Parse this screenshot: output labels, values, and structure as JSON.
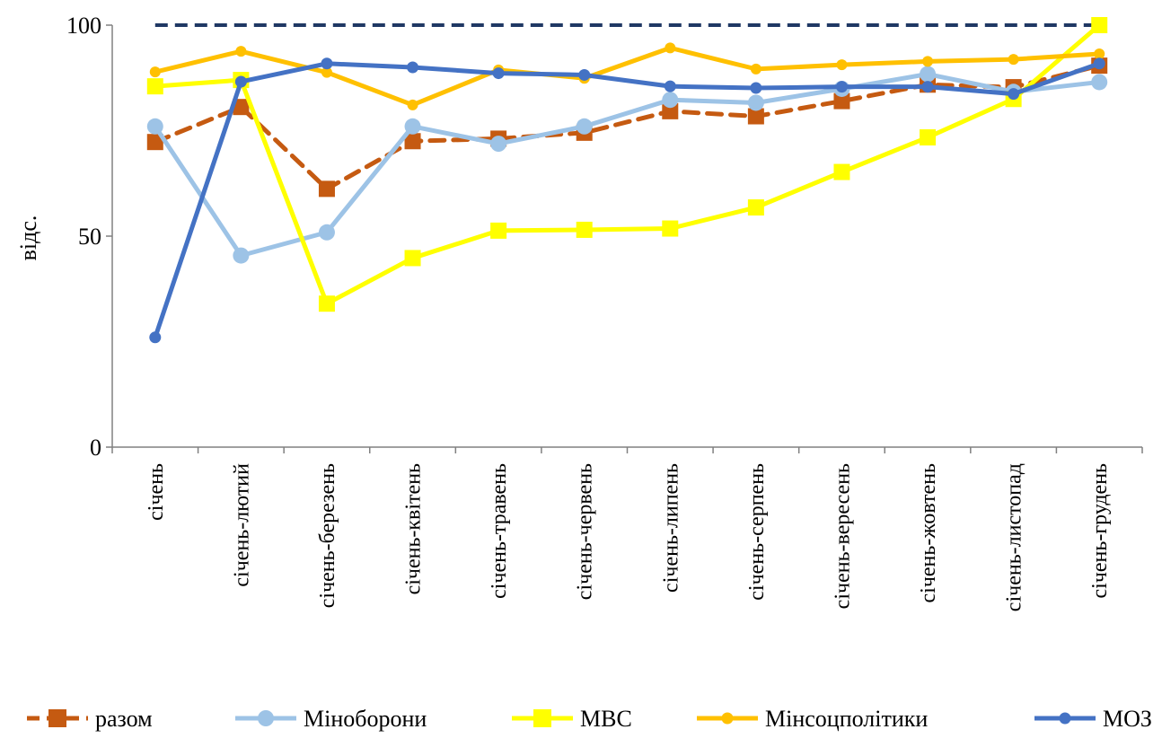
{
  "chart_data": {
    "type": "line",
    "ylabel": "відс.",
    "xlabel": "",
    "ylim": [
      0,
      100
    ],
    "yticks": [
      "0",
      "50",
      "100"
    ],
    "grid": false,
    "legend_position": "bottom",
    "categories": [
      "січень",
      "січень-лютий",
      "січень-березень",
      "січень-квітень",
      "січень-травень",
      "січень-червень",
      "січень-липень",
      "січень-серпень",
      "січень-вересень",
      "січень-жовтень",
      "січень-листопад",
      "січень-грудень"
    ],
    "reference_line": {
      "value": 100,
      "color": "#1f3864",
      "style": "dashed"
    },
    "series": [
      {
        "name": "разом",
        "color": "#c55a11",
        "marker": "square",
        "dash": true,
        "values": [
          72.3,
          80.6,
          61.2,
          72.5,
          73.1,
          74.5,
          79.6,
          78.4,
          82.0,
          85.9,
          85.3,
          90.4
        ]
      },
      {
        "name": "Міноборони",
        "color": "#9dc3e6",
        "marker": "circle",
        "dash": false,
        "values": [
          76.0,
          45.4,
          50.9,
          76.0,
          71.9,
          76.0,
          82.3,
          81.6,
          84.9,
          88.4,
          84.2,
          86.5
        ]
      },
      {
        "name": "МВС",
        "color": "#ffff00",
        "marker": "square",
        "dash": false,
        "values": [
          85.5,
          87.0,
          34.0,
          44.8,
          51.3,
          51.5,
          51.8,
          56.8,
          65.2,
          73.4,
          82.5,
          100.0
        ]
      },
      {
        "name": "Мінсоцполітики",
        "color": "#ffc000",
        "marker": "circle",
        "dash": false,
        "values": [
          88.9,
          93.8,
          88.8,
          81.1,
          89.4,
          87.4,
          94.6,
          89.6,
          90.6,
          91.4,
          91.9,
          93.2
        ]
      },
      {
        "name": "МОЗ",
        "color": "#4472c4",
        "marker": "circle",
        "dash": false,
        "values": [
          26.0,
          86.6,
          90.9,
          90.0,
          88.6,
          88.2,
          85.5,
          85.1,
          85.4,
          85.4,
          83.7,
          90.9
        ]
      }
    ]
  }
}
